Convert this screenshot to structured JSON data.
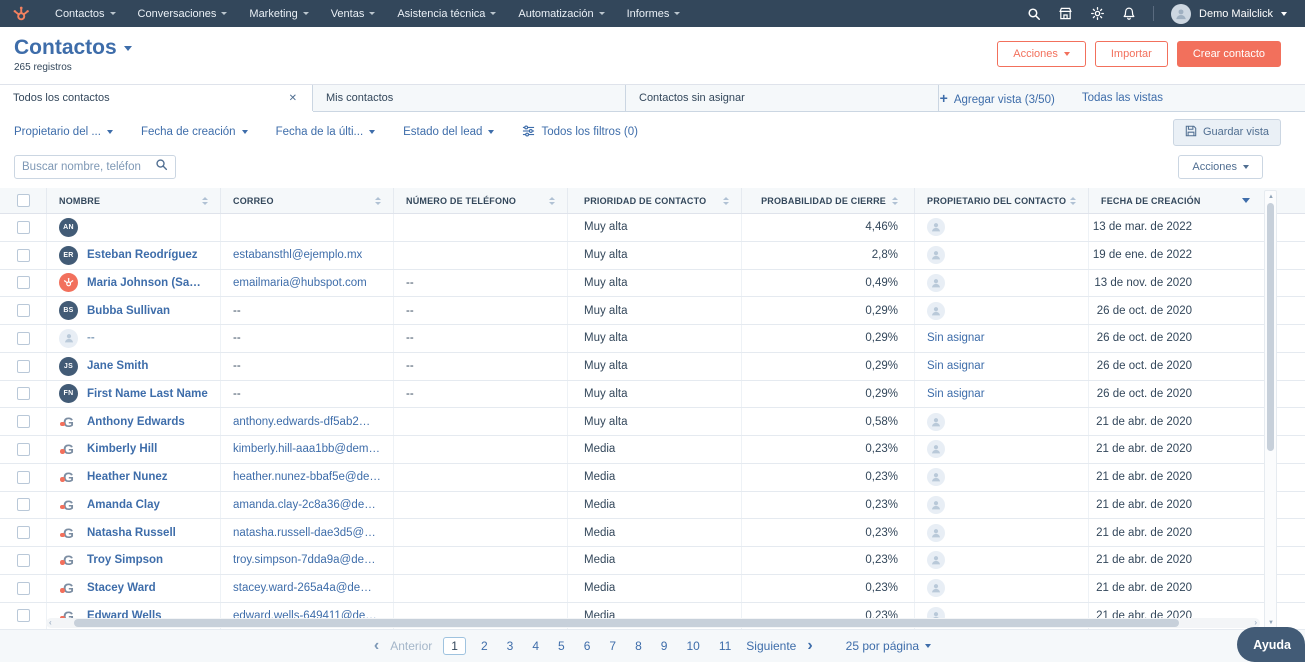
{
  "nav": {
    "items": [
      "Contactos",
      "Conversaciones",
      "Marketing",
      "Ventas",
      "Asistencia técnica",
      "Automatización",
      "Informes"
    ],
    "user": {
      "name": "Demo Mailclick"
    }
  },
  "header": {
    "title": "Contactos",
    "record_count": "265 registros",
    "buttons": {
      "actions": "Acciones",
      "import": "Importar",
      "create": "Crear contacto"
    }
  },
  "views": {
    "tabs": [
      {
        "label": "Todos los contactos",
        "active": true,
        "closable": true
      },
      {
        "label": "Mis contactos",
        "active": false,
        "closable": false
      },
      {
        "label": "Contactos sin asignar",
        "active": false,
        "closable": false
      }
    ],
    "add_view": "Agregar vista (3/50)",
    "all_views": "Todas las vistas"
  },
  "filters": {
    "dropdowns": [
      "Propietario del ...",
      "Fecha de creación",
      "Fecha de la últi...",
      "Estado del lead"
    ],
    "all_filters": "Todos los filtros (0)",
    "save_view": "Guardar vista"
  },
  "toolbar": {
    "search_placeholder": "Buscar nombre, teléfon",
    "actions": "Acciones"
  },
  "table": {
    "columns": [
      "NOMBRE",
      "CORREO",
      "NÚMERO DE TELÉFONO",
      "PRIORIDAD DE CONTACTO",
      "PROBABILIDAD DE CIERRE",
      "PROPIETARIO DEL CONTACTO",
      "FECHA DE CREACIÓN"
    ],
    "sort": {
      "column": "FECHA DE CREACIÓN",
      "direction": "desc"
    },
    "rows": [
      {
        "avatar": "AN",
        "avatar_type": "initials",
        "name": "",
        "email": "",
        "phone": "",
        "priority": "Muy alta",
        "probability": "4,46%",
        "owner": "avatar",
        "created": "13 de mar. de 2022"
      },
      {
        "avatar": "ER",
        "avatar_type": "initials",
        "name": "Esteban Reodríguez",
        "email": "estabansthl@ejemplo.mx",
        "phone": "",
        "priority": "Muy alta",
        "probability": "2,8%",
        "owner": "avatar",
        "created": "19 de ene. de 2022"
      },
      {
        "avatar": "HS",
        "avatar_type": "hubspot",
        "name": "Maria Johnson (Sampl...",
        "email": "emailmaria@hubspot.com",
        "phone": "--",
        "priority": "Muy alta",
        "probability": "0,49%",
        "owner": "avatar",
        "created": "13 de nov. de 2020"
      },
      {
        "avatar": "BS",
        "avatar_type": "initials",
        "name": "Bubba Sullivan",
        "email": "--",
        "phone": "--",
        "priority": "Muy alta",
        "probability": "0,29%",
        "owner": "avatar",
        "created": "26 de oct. de 2020"
      },
      {
        "avatar": "",
        "avatar_type": "person",
        "name": "--",
        "email": "--",
        "phone": "--",
        "priority": "Muy alta",
        "probability": "0,29%",
        "owner": "Sin asignar",
        "created": "26 de oct. de 2020"
      },
      {
        "avatar": "JS",
        "avatar_type": "initials",
        "name": "Jane Smith",
        "email": "--",
        "phone": "--",
        "priority": "Muy alta",
        "probability": "0,29%",
        "owner": "Sin asignar",
        "created": "26 de oct. de 2020"
      },
      {
        "avatar": "FN",
        "avatar_type": "initials",
        "name": "First Name Last Name",
        "email": "--",
        "phone": "--",
        "priority": "Muy alta",
        "probability": "0,29%",
        "owner": "Sin asignar",
        "created": "26 de oct. de 2020"
      },
      {
        "avatar": "G",
        "avatar_type": "g-logo",
        "name": "Anthony Edwards",
        "email": "anthony.edwards-df5ab2@d...",
        "phone": "",
        "priority": "Muy alta",
        "probability": "0,58%",
        "owner": "avatar",
        "created": "21 de abr. de 2020"
      },
      {
        "avatar": "G",
        "avatar_type": "g-logo",
        "name": "Kimberly Hill",
        "email": "kimberly.hill-aaa1bb@demo...",
        "phone": "",
        "priority": "Media",
        "probability": "0,23%",
        "owner": "avatar",
        "created": "21 de abr. de 2020"
      },
      {
        "avatar": "G",
        "avatar_type": "g-logo",
        "name": "Heather Nunez",
        "email": "heather.nunez-bbaf5e@dem...",
        "phone": "",
        "priority": "Media",
        "probability": "0,23%",
        "owner": "avatar",
        "created": "21 de abr. de 2020"
      },
      {
        "avatar": "G",
        "avatar_type": "g-logo",
        "name": "Amanda Clay",
        "email": "amanda.clay-2c8a36@demo...",
        "phone": "",
        "priority": "Media",
        "probability": "0,23%",
        "owner": "avatar",
        "created": "21 de abr. de 2020"
      },
      {
        "avatar": "G",
        "avatar_type": "g-logo",
        "name": "Natasha Russell",
        "email": "natasha.russell-dae3d5@de...",
        "phone": "",
        "priority": "Media",
        "probability": "0,23%",
        "owner": "avatar",
        "created": "21 de abr. de 2020"
      },
      {
        "avatar": "G",
        "avatar_type": "g-logo",
        "name": "Troy Simpson",
        "email": "troy.simpson-7dda9a@demo...",
        "phone": "",
        "priority": "Media",
        "probability": "0,23%",
        "owner": "avatar",
        "created": "21 de abr. de 2020"
      },
      {
        "avatar": "G",
        "avatar_type": "g-logo",
        "name": "Stacey Ward",
        "email": "stacey.ward-265a4a@demos...",
        "phone": "",
        "priority": "Media",
        "probability": "0,23%",
        "owner": "avatar",
        "created": "21 de abr. de 2020"
      },
      {
        "avatar": "G",
        "avatar_type": "g-logo",
        "name": "Edward Wells",
        "email": "edward.wells-649411@dem...",
        "phone": "",
        "priority": "Media",
        "probability": "0,23%",
        "owner": "avatar",
        "created": "21 de abr. de 2020"
      }
    ]
  },
  "pagination": {
    "prev": "Anterior",
    "pages": [
      "1",
      "2",
      "3",
      "4",
      "5",
      "6",
      "7",
      "8",
      "9",
      "10",
      "11"
    ],
    "current_page": "1",
    "next": "Siguiente",
    "per_page": "25 por página"
  },
  "help_label": "Ayuda",
  "colors": {
    "accent_orange": "#f2705c",
    "link_blue": "#3e6daa",
    "navy": "#33475b",
    "header_bg": "#f5f8fa"
  }
}
